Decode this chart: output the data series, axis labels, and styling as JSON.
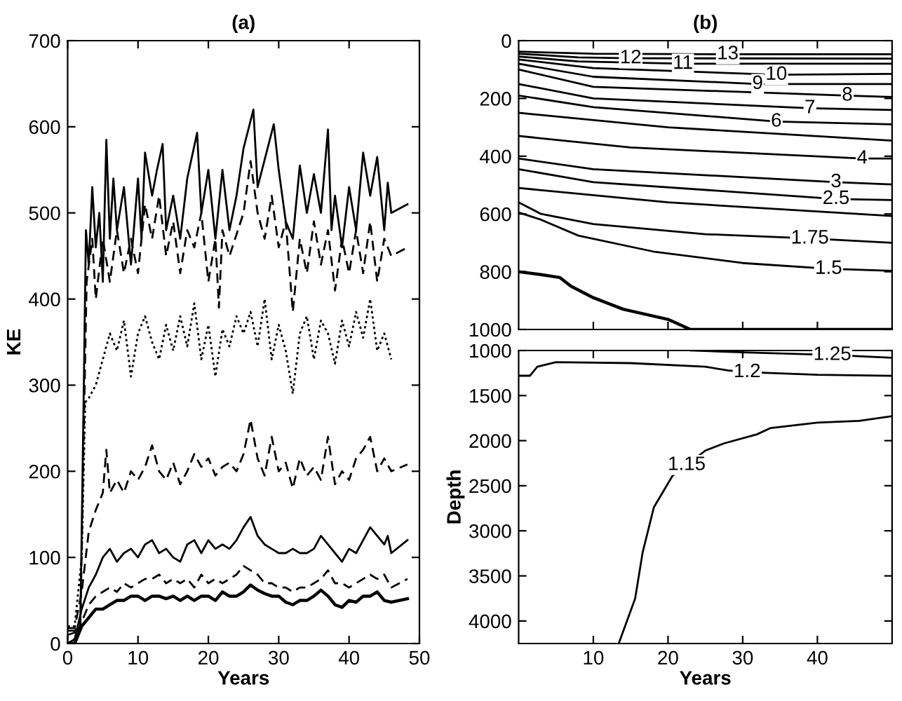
{
  "chart_data": [
    {
      "type": "line",
      "title": "(a)",
      "xlabel": "Years",
      "ylabel": "KE",
      "xlim": [
        0,
        50
      ],
      "xticks": [
        0,
        10,
        20,
        30,
        40,
        50
      ],
      "ylim": [
        0,
        700
      ],
      "yticks": [
        0,
        100,
        200,
        300,
        400,
        500,
        600,
        700
      ],
      "grid": false,
      "legend": false,
      "series": [
        {
          "color": "#000000",
          "line_style": "solid",
          "x": [
            0,
            1,
            1.8,
            2.3,
            2.6,
            3,
            3.5,
            4,
            4.5,
            5,
            5.5,
            6,
            6.5,
            7,
            8,
            9,
            10,
            10.5,
            11,
            12,
            12.7,
            13.5,
            14,
            15,
            16,
            17,
            18.4,
            19,
            20,
            21,
            22,
            23,
            24,
            25,
            26.4,
            27,
            29.3,
            30,
            31,
            32,
            33,
            34,
            35,
            36,
            37,
            37.5,
            38,
            39,
            40,
            41,
            42,
            43,
            44,
            45,
            45.5,
            46,
            48.3
          ],
          "values": [
            15,
            15,
            20,
            300,
            480,
            440,
            530,
            460,
            500,
            420,
            585,
            470,
            540,
            480,
            530,
            440,
            540,
            470,
            570,
            520,
            550,
            580,
            480,
            520,
            470,
            540,
            593,
            500,
            550,
            470,
            550,
            480,
            520,
            575,
            620,
            530,
            603,
            550,
            490,
            470,
            555,
            500,
            545,
            500,
            597,
            480,
            520,
            460,
            530,
            480,
            570,
            520,
            565,
            480,
            535,
            500,
            510
          ]
        },
        {
          "color": "#000000",
          "line_style": "dashed",
          "x": [
            0,
            1.8,
            2.3,
            2.7,
            3.5,
            4,
            5,
            6,
            7,
            8,
            9,
            10,
            11,
            12,
            13,
            14,
            15,
            16,
            17,
            18,
            19,
            20,
            21,
            21.5,
            22,
            23,
            25,
            26,
            27,
            28,
            29,
            30,
            31,
            32,
            33,
            34,
            35,
            36,
            37,
            38,
            39,
            40,
            41,
            42,
            43,
            44,
            45,
            46,
            48.3
          ],
          "values": [
            10,
            15,
            250,
            420,
            470,
            400,
            470,
            420,
            480,
            430,
            470,
            430,
            510,
            470,
            520,
            450,
            490,
            430,
            480,
            460,
            500,
            420,
            470,
            390,
            480,
            450,
            500,
            560,
            500,
            470,
            520,
            460,
            490,
            385,
            470,
            430,
            490,
            440,
            480,
            410,
            470,
            430,
            480,
            430,
            490,
            420,
            470,
            450,
            460
          ]
        },
        {
          "color": "#000000",
          "line_style": "dotted",
          "x": [
            0,
            1,
            2,
            2.5,
            3,
            4,
            5,
            6,
            7,
            8,
            9,
            10,
            11,
            12,
            13,
            14,
            15,
            16,
            17,
            18,
            19,
            20,
            21,
            22,
            23,
            24,
            25,
            26,
            27,
            28,
            29,
            30,
            31,
            32,
            33,
            34,
            35,
            36,
            37,
            38,
            39,
            40,
            41,
            42,
            43,
            44,
            45,
            46
          ],
          "values": [
            20,
            20,
            100,
            280,
            285,
            300,
            330,
            360,
            340,
            375,
            310,
            360,
            380,
            350,
            330,
            370,
            340,
            380,
            345,
            395,
            330,
            370,
            310,
            365,
            345,
            380,
            360,
            385,
            345,
            400,
            330,
            370,
            340,
            290,
            360,
            380,
            330,
            375,
            360,
            325,
            375,
            345,
            385,
            355,
            400,
            340,
            360,
            330
          ]
        },
        {
          "color": "#000000",
          "line_style": "dashed",
          "x": [
            0,
            1,
            2,
            3,
            4,
            5,
            5.5,
            6,
            7,
            8,
            9,
            10,
            11,
            12,
            13,
            14,
            15,
            16,
            17,
            18,
            19,
            20,
            21,
            22,
            23,
            24,
            25,
            26,
            27,
            28,
            29,
            30,
            31,
            32,
            33,
            34,
            35,
            36,
            37,
            38,
            39,
            40,
            41,
            42,
            43,
            44,
            45,
            46,
            48.3
          ],
          "values": [
            18,
            18,
            60,
            130,
            155,
            175,
            225,
            175,
            190,
            175,
            200,
            190,
            205,
            230,
            200,
            190,
            210,
            185,
            200,
            220,
            205,
            215,
            195,
            205,
            210,
            200,
            220,
            260,
            215,
            195,
            240,
            200,
            210,
            180,
            215,
            195,
            205,
            190,
            240,
            185,
            200,
            190,
            215,
            225,
            240,
            200,
            215,
            200,
            208
          ]
        },
        {
          "color": "#000000",
          "line_style": "solid",
          "x": [
            0,
            1,
            2,
            3,
            4,
            5,
            6,
            7,
            8,
            9,
            10,
            11,
            12,
            13,
            14,
            15,
            16,
            17,
            18,
            19,
            20,
            21,
            22,
            23,
            24,
            25,
            26,
            27,
            28,
            29,
            30,
            31,
            32,
            33,
            34,
            35,
            36,
            37,
            38,
            39,
            40,
            41,
            42,
            43,
            44,
            45,
            45.5,
            46,
            48.3
          ],
          "values": [
            0,
            5,
            40,
            65,
            80,
            100,
            110,
            95,
            105,
            110,
            100,
            115,
            120,
            105,
            110,
            100,
            95,
            115,
            120,
            105,
            120,
            110,
            115,
            110,
            120,
            135,
            147,
            125,
            115,
            110,
            105,
            105,
            110,
            105,
            105,
            110,
            125,
            115,
            105,
            95,
            110,
            105,
            120,
            135,
            125,
            115,
            125,
            105,
            120
          ]
        },
        {
          "color": "#000000",
          "line_style": "dashed",
          "x": [
            0,
            1,
            2,
            3,
            4,
            5,
            6,
            7,
            8,
            9,
            10,
            11,
            12,
            13,
            14,
            15,
            16,
            17,
            18,
            19,
            20,
            21,
            22,
            23,
            24,
            25,
            26,
            27,
            28,
            29,
            30,
            31,
            32,
            33,
            34,
            35,
            36,
            37,
            38,
            39,
            40,
            41,
            42,
            43,
            44,
            45,
            46,
            48.3
          ],
          "values": [
            0,
            5,
            25,
            45,
            55,
            60,
            65,
            60,
            70,
            65,
            70,
            75,
            75,
            80,
            70,
            75,
            70,
            75,
            65,
            80,
            70,
            75,
            70,
            75,
            80,
            90,
            85,
            80,
            70,
            70,
            65,
            65,
            60,
            65,
            65,
            70,
            75,
            85,
            70,
            70,
            65,
            70,
            75,
            80,
            75,
            80,
            65,
            75
          ]
        },
        {
          "color": "#000000",
          "line_style": "solid",
          "x": [
            0,
            1,
            2,
            3,
            4,
            5,
            6,
            7,
            8,
            9,
            10,
            11,
            12,
            13,
            14,
            15,
            16,
            17,
            18,
            19,
            20,
            21,
            22,
            23,
            24,
            25,
            26,
            27,
            28,
            29,
            30,
            31,
            32,
            33,
            34,
            35,
            36,
            37,
            38,
            39,
            40,
            41,
            42,
            43,
            44,
            45,
            46,
            48.3
          ],
          "values": [
            0,
            0,
            20,
            30,
            40,
            40,
            45,
            50,
            50,
            55,
            55,
            50,
            55,
            55,
            52,
            55,
            50,
            55,
            50,
            55,
            55,
            50,
            60,
            55,
            55,
            60,
            68,
            62,
            58,
            55,
            55,
            48,
            45,
            50,
            50,
            55,
            62,
            55,
            45,
            42,
            50,
            48,
            55,
            55,
            60,
            50,
            48,
            52
          ]
        }
      ]
    },
    {
      "type": "line",
      "title": "(b)",
      "xlim": [
        0,
        50
      ],
      "xticks": [
        10,
        20,
        30,
        40
      ],
      "ylim": [
        1000,
        0
      ],
      "yticks": [
        0,
        200,
        400,
        600,
        800,
        1000
      ],
      "tick_labels": "y",
      "grid": false,
      "legend": false,
      "annotations": [
        {
          "text": "13",
          "x": 28,
          "y": 47
        },
        {
          "text": "12",
          "x": 15,
          "y": 61
        },
        {
          "text": "11",
          "x": 22,
          "y": 80
        },
        {
          "text": "10",
          "x": 34.5,
          "y": 118
        },
        {
          "text": "9",
          "x": 32,
          "y": 150
        },
        {
          "text": "8",
          "x": 44,
          "y": 190
        },
        {
          "text": "7",
          "x": 39,
          "y": 234
        },
        {
          "text": "6",
          "x": 34.5,
          "y": 280
        },
        {
          "text": "4",
          "x": 46,
          "y": 408
        },
        {
          "text": "3",
          "x": 42.5,
          "y": 490
        },
        {
          "text": "2.5",
          "x": 42.5,
          "y": 548
        },
        {
          "text": "1.75",
          "x": 39,
          "y": 685
        },
        {
          "text": "1.5",
          "x": 41.5,
          "y": 790
        }
      ],
      "series": [
        {
          "color": "#000000",
          "x": [
            0,
            10,
            28,
            50
          ],
          "values": [
            38,
            45,
            47,
            47
          ]
        },
        {
          "color": "#000000",
          "x": [
            0,
            8,
            15,
            50
          ],
          "values": [
            45,
            58,
            61,
            62
          ]
        },
        {
          "color": "#000000",
          "x": [
            0,
            8,
            22,
            50
          ],
          "values": [
            55,
            72,
            80,
            80
          ]
        },
        {
          "color": "#000000",
          "x": [
            0,
            10,
            34.5,
            50
          ],
          "values": [
            65,
            95,
            118,
            115
          ]
        },
        {
          "color": "#000000",
          "x": [
            0,
            10,
            32,
            50
          ],
          "values": [
            80,
            125,
            150,
            150
          ]
        },
        {
          "color": "#000000",
          "x": [
            0,
            10,
            44,
            50
          ],
          "values": [
            100,
            160,
            190,
            195
          ]
        },
        {
          "color": "#000000",
          "x": [
            0,
            10,
            39,
            50
          ],
          "values": [
            150,
            200,
            234,
            240
          ]
        },
        {
          "color": "#000000",
          "x": [
            0,
            10,
            34.5,
            50
          ],
          "values": [
            190,
            230,
            280,
            290
          ]
        },
        {
          "color": "#000000",
          "x": [
            0,
            20,
            50
          ],
          "values": [
            250,
            300,
            346
          ]
        },
        {
          "color": "#000000",
          "x": [
            0,
            15,
            46,
            50
          ],
          "values": [
            330,
            370,
            408,
            408
          ]
        },
        {
          "color": "#000000",
          "x": [
            0,
            10,
            42.5,
            50
          ],
          "values": [
            408,
            445,
            490,
            498
          ]
        },
        {
          "color": "#000000",
          "x": [
            0,
            10,
            42.5,
            50
          ],
          "values": [
            445,
            490,
            548,
            552
          ]
        },
        {
          "color": "#000000",
          "x": [
            0,
            20,
            50
          ],
          "values": [
            510,
            560,
            607
          ]
        },
        {
          "color": "#000000",
          "x": [
            0,
            3,
            10,
            25,
            39,
            50
          ],
          "values": [
            560,
            600,
            635,
            670,
            685,
            700
          ]
        },
        {
          "color": "#000000",
          "x": [
            0,
            3,
            8,
            18,
            30,
            41.5,
            50
          ],
          "values": [
            595,
            620,
            675,
            730,
            770,
            790,
            797
          ]
        },
        {
          "color": "#000000",
          "x": [
            0,
            3,
            5.5,
            7,
            10,
            14,
            20,
            23,
            50
          ],
          "values": [
            800,
            810,
            820,
            850,
            890,
            930,
            965,
            1000,
            1000
          ]
        }
      ]
    },
    {
      "type": "line",
      "xlabel": "Years",
      "ylabel": "Depth",
      "xlim": [
        0,
        50
      ],
      "xticks": [
        10,
        20,
        30,
        40
      ],
      "ylim": [
        4250,
        1000
      ],
      "yticks": [
        1000,
        1500,
        2000,
        2500,
        3000,
        3500,
        4000
      ],
      "grid": false,
      "legend": false,
      "annotations": [
        {
          "text": "1.25",
          "x": 42,
          "y": 1050
        },
        {
          "text": "1.2",
          "x": 30.6,
          "y": 1240
        },
        {
          "text": "1.15",
          "x": 22.5,
          "y": 2270
        }
      ],
      "series": [
        {
          "color": "#000000",
          "x": [
            23,
            30,
            42,
            50
          ],
          "values": [
            1000,
            1020,
            1050,
            1080
          ]
        },
        {
          "color": "#000000",
          "x": [
            0,
            1.5,
            2.5,
            5,
            15,
            25,
            28,
            30.6,
            40,
            50
          ],
          "values": [
            1280,
            1280,
            1180,
            1130,
            1140,
            1180,
            1220,
            1240,
            1270,
            1280
          ]
        },
        {
          "color": "#000000",
          "x": [
            13.4,
            15.6,
            16.6,
            18.1,
            20.6,
            25,
            27.5,
            31.9,
            33.75,
            40,
            45.6,
            49.9
          ],
          "values": [
            4250,
            3750,
            3240,
            2740,
            2390,
            2110,
            2030,
            1930,
            1860,
            1800,
            1780,
            1730
          ]
        }
      ]
    }
  ]
}
